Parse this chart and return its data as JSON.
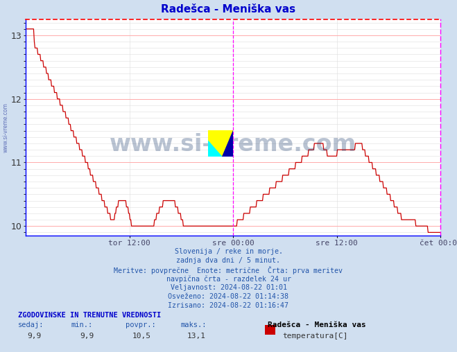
{
  "title": "Radešca - Meniška vas",
  "title_color": "#0000cc",
  "bg_color": "#d0dff0",
  "plot_bg_color": "#ffffff",
  "line_color": "#cc0000",
  "grid_color_major": "#ffaaaa",
  "grid_color_minor": "#dddddd",
  "border_color_top": "#ff0000",
  "border_color_right": "#ff00ff",
  "border_color_bottom": "#0000ff",
  "border_color_left": "#0000ff",
  "vline_color": "#ff00ff",
  "ylim": [
    9.85,
    13.25
  ],
  "yticks": [
    10,
    11,
    12,
    13
  ],
  "xlabel_color": "#444466",
  "xtick_labels": [
    "tor 12:00",
    "sre 00:00",
    "sre 12:00",
    "čet 00:00"
  ],
  "xtick_positions": [
    0.25,
    0.5,
    0.75,
    1.0
  ],
  "vline_pos": 0.5,
  "info_lines": [
    "Slovenija / reke in morje.",
    "zadnja dva dni / 5 minut.",
    "Meritve: povprečne  Enote: metrične  Črta: prva meritev",
    "navpična črta - razdelek 24 ur",
    "Veljavnost: 2024-08-22 01:01",
    "Osveženo: 2024-08-22 01:14:38",
    "Izrisano: 2024-08-22 01:16:47"
  ],
  "stats_header": "ZGODOVINSKE IN TRENUTNE VREDNOSTI",
  "stats_labels": [
    "sedaj:",
    "min.:",
    "povpr.:",
    "maks.:"
  ],
  "stats_values": [
    "9,9",
    "9,9",
    "10,5",
    "13,1"
  ],
  "legend_station": "Radešca - Meniška vas",
  "legend_label": "temperatura[C]",
  "legend_color": "#cc0000",
  "watermark_text": "www.si-vreme.com",
  "watermark_color": "#1a3a6b",
  "watermark_alpha": 0.3,
  "n_points": 577
}
